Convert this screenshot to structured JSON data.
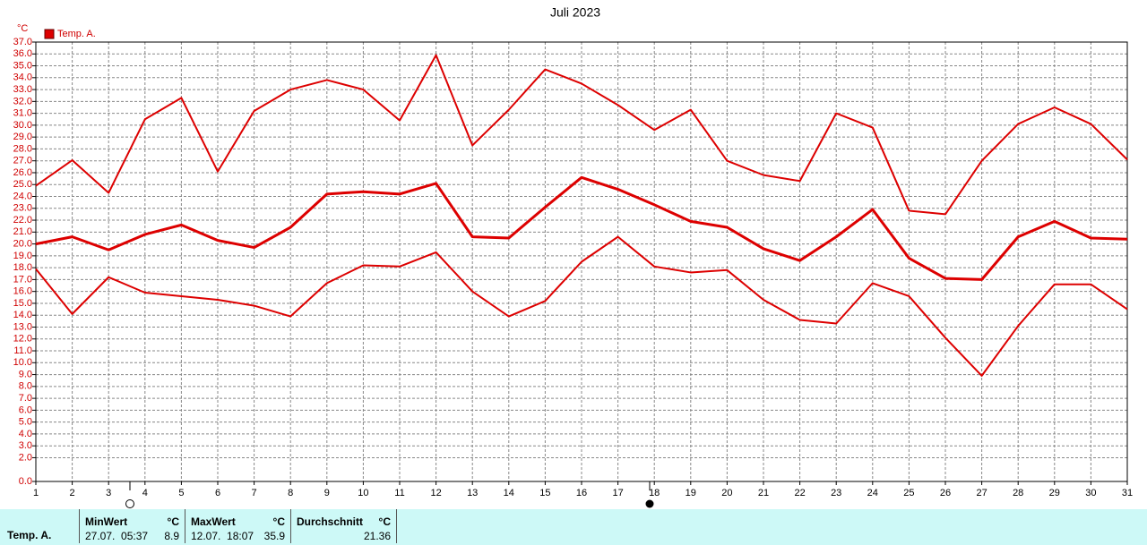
{
  "chart_data": {
    "type": "line",
    "title": "Juli 2023",
    "y_unit": "°C",
    "legend": "Temp. A.",
    "grid": true,
    "x": [
      1,
      2,
      3,
      4,
      5,
      6,
      7,
      8,
      9,
      10,
      11,
      12,
      13,
      14,
      15,
      16,
      17,
      18,
      19,
      20,
      21,
      22,
      23,
      24,
      25,
      26,
      27,
      28,
      29,
      30,
      31
    ],
    "xlim": [
      1,
      31
    ],
    "xticks": [
      1,
      2,
      3,
      4,
      5,
      6,
      7,
      8,
      9,
      10,
      11,
      12,
      13,
      14,
      15,
      16,
      17,
      18,
      19,
      20,
      21,
      22,
      23,
      24,
      25,
      26,
      27,
      28,
      29,
      30,
      31
    ],
    "ylim": [
      0,
      37
    ],
    "yticks": [
      {
        "value": 0,
        "label": "0.0"
      },
      {
        "value": 2,
        "label": "2.0"
      },
      {
        "value": 3,
        "label": "3.0"
      },
      {
        "value": 4,
        "label": "4.0"
      },
      {
        "value": 5,
        "label": "5.0"
      },
      {
        "value": 6,
        "label": "6.0"
      },
      {
        "value": 7,
        "label": "7.0"
      },
      {
        "value": 8,
        "label": "8.0"
      },
      {
        "value": 9,
        "label": "9.0"
      },
      {
        "value": 10,
        "label": "10.0"
      },
      {
        "value": 11,
        "label": "11.0"
      },
      {
        "value": 12,
        "label": "12.0"
      },
      {
        "value": 13,
        "label": "13.0"
      },
      {
        "value": 14,
        "label": "14.0"
      },
      {
        "value": 15,
        "label": "15.0"
      },
      {
        "value": 16,
        "label": "16.0"
      },
      {
        "value": 17,
        "label": "17.0"
      },
      {
        "value": 18,
        "label": "18.0"
      },
      {
        "value": 19,
        "label": "19.0"
      },
      {
        "value": 20,
        "label": "20.0"
      },
      {
        "value": 21,
        "label": "21.0"
      },
      {
        "value": 22,
        "label": "22.0"
      },
      {
        "value": 23,
        "label": "23.0"
      },
      {
        "value": 24,
        "label": "24.0"
      },
      {
        "value": 25,
        "label": "25.0"
      },
      {
        "value": 26,
        "label": "26.0"
      },
      {
        "value": 27,
        "label": "27.0"
      },
      {
        "value": 28,
        "label": "28.0"
      },
      {
        "value": 29,
        "label": "29.0"
      },
      {
        "value": 30,
        "label": "30.0"
      },
      {
        "value": 31,
        "label": "31.0"
      },
      {
        "value": 32,
        "label": "32.0"
      },
      {
        "value": 33,
        "label": "33.0"
      },
      {
        "value": 34,
        "label": "34.0"
      },
      {
        "value": 35,
        "label": "35.0"
      },
      {
        "value": 36,
        "label": "36.0"
      },
      {
        "value": 37,
        "label": "37.0"
      }
    ],
    "series": [
      {
        "color": "#dd0000",
        "values": [
          24.9,
          27.05,
          24.3,
          30.5,
          32.3,
          26.1,
          31.2,
          33.0,
          33.8,
          33.0,
          30.4,
          35.9,
          28.3,
          31.3,
          34.7,
          33.5,
          31.7,
          29.6,
          31.3,
          27.0,
          25.8,
          25.3,
          31.0,
          29.8,
          22.8,
          22.5,
          27.0,
          30.1,
          31.5,
          30.1,
          27.1
        ]
      },
      {
        "color": "#dd0000",
        "values": [
          20.0,
          20.6,
          19.5,
          20.8,
          21.6,
          20.3,
          19.7,
          21.4,
          24.2,
          24.4,
          24.2,
          25.1,
          20.6,
          20.5,
          23.1,
          25.6,
          24.6,
          23.3,
          21.9,
          21.4,
          19.6,
          18.6,
          20.6,
          22.9,
          18.8,
          17.1,
          17.0,
          20.6,
          21.9,
          20.5,
          20.4
        ]
      },
      {
        "color": "#dd0000",
        "values": [
          17.9,
          14.1,
          17.2,
          15.9,
          15.6,
          15.3,
          14.8,
          13.9,
          16.7,
          18.2,
          18.1,
          19.3,
          16.0,
          13.9,
          15.2,
          18.5,
          20.6,
          18.1,
          17.6,
          17.8,
          15.3,
          13.6,
          13.3,
          16.7,
          15.6,
          12.1,
          8.9,
          13.1,
          16.6,
          16.6,
          14.5
        ]
      }
    ]
  },
  "summary": {
    "row_label": "Temp. A.",
    "min": {
      "header": "MinWert",
      "unit": "°C",
      "time": "27.07.  05:37",
      "value": "8.9"
    },
    "max": {
      "header": "MaxWert",
      "unit": "°C",
      "time": "12.07.  18:07",
      "value": "35.9"
    },
    "avg": {
      "header": "Durchschnitt",
      "unit": "°C",
      "value": "21.36"
    }
  }
}
